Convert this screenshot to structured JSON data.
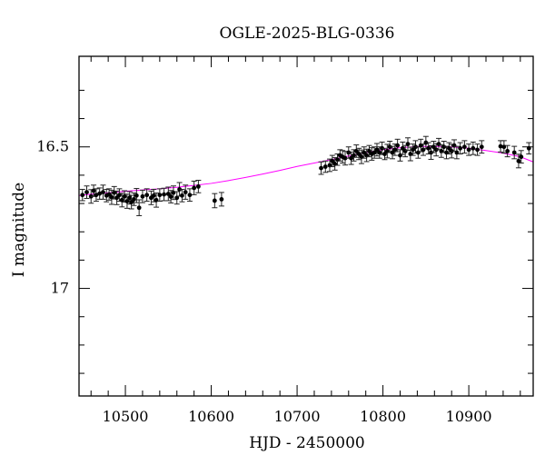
{
  "chart_data": {
    "type": "scatter",
    "title": "OGLE-2025-BLG-0336",
    "xlabel": "HJD - 2450000",
    "ylabel": "I magnitude",
    "xlim": [
      10446,
      10975
    ],
    "ylim": [
      17.38,
      16.18
    ],
    "y_inverted": true,
    "x_ticks": [
      10500,
      10600,
      10700,
      10800,
      10900
    ],
    "y_ticks": [
      16.5,
      17
    ],
    "y_tick_labels": [
      "16.5",
      "17"
    ],
    "grid": false,
    "colors": {
      "points": "#000000",
      "model": "#ff00ff",
      "axes": "#000000"
    },
    "series": [
      {
        "kind": "points-with-errorbars",
        "points": [
          [
            10450,
            16.67,
            0.02
          ],
          [
            10455,
            16.66,
            0.022
          ],
          [
            10460,
            16.675,
            0.024
          ],
          [
            10463,
            16.655,
            0.02
          ],
          [
            10466,
            16.67,
            0.022
          ],
          [
            10470,
            16.665,
            0.02
          ],
          [
            10474,
            16.66,
            0.025
          ],
          [
            10478,
            16.672,
            0.022
          ],
          [
            10481,
            16.668,
            0.02
          ],
          [
            10484,
            16.678,
            0.025
          ],
          [
            10487,
            16.662,
            0.022
          ],
          [
            10490,
            16.68,
            0.024
          ],
          [
            10493,
            16.67,
            0.022
          ],
          [
            10496,
            16.688,
            0.024
          ],
          [
            10499,
            16.675,
            0.02
          ],
          [
            10502,
            16.692,
            0.025
          ],
          [
            10505,
            16.68,
            0.022
          ],
          [
            10507,
            16.695,
            0.024
          ],
          [
            10510,
            16.685,
            0.022
          ],
          [
            10513,
            16.672,
            0.025
          ],
          [
            10516,
            16.715,
            0.028
          ],
          [
            10520,
            16.675,
            0.022
          ],
          [
            10525,
            16.67,
            0.022
          ],
          [
            10530,
            16.68,
            0.024
          ],
          [
            10533,
            16.672,
            0.022
          ],
          [
            10536,
            16.688,
            0.025
          ],
          [
            10540,
            16.67,
            0.022
          ],
          [
            10545,
            16.668,
            0.022
          ],
          [
            10550,
            16.666,
            0.024
          ],
          [
            10553,
            16.676,
            0.022
          ],
          [
            10556,
            16.662,
            0.024
          ],
          [
            10560,
            16.68,
            0.022
          ],
          [
            10563,
            16.65,
            0.024
          ],
          [
            10566,
            16.672,
            0.022
          ],
          [
            10570,
            16.66,
            0.025
          ],
          [
            10575,
            16.67,
            0.022
          ],
          [
            10580,
            16.645,
            0.024
          ],
          [
            10585,
            16.64,
            0.022
          ],
          [
            10604,
            16.69,
            0.025
          ],
          [
            10612,
            16.685,
            0.024
          ],
          [
            10728,
            16.575,
            0.022
          ],
          [
            10733,
            16.57,
            0.02
          ],
          [
            10738,
            16.565,
            0.022
          ],
          [
            10741,
            16.55,
            0.02
          ],
          [
            10744,
            16.56,
            0.022
          ],
          [
            10747,
            16.545,
            0.02
          ],
          [
            10750,
            16.53,
            0.02
          ],
          [
            10753,
            16.535,
            0.022
          ],
          [
            10756,
            16.54,
            0.024
          ],
          [
            10760,
            16.52,
            0.02
          ],
          [
            10763,
            16.54,
            0.022
          ],
          [
            10766,
            16.53,
            0.02
          ],
          [
            10769,
            16.515,
            0.022
          ],
          [
            10772,
            16.525,
            0.02
          ],
          [
            10775,
            16.535,
            0.024
          ],
          [
            10778,
            16.52,
            0.02
          ],
          [
            10781,
            16.53,
            0.022
          ],
          [
            10784,
            16.515,
            0.02
          ],
          [
            10787,
            16.525,
            0.022
          ],
          [
            10790,
            16.52,
            0.02
          ],
          [
            10793,
            16.51,
            0.022
          ],
          [
            10796,
            16.52,
            0.02
          ],
          [
            10799,
            16.505,
            0.022
          ],
          [
            10802,
            16.525,
            0.02
          ],
          [
            10805,
            16.515,
            0.024
          ],
          [
            10808,
            16.5,
            0.02
          ],
          [
            10811,
            16.52,
            0.022
          ],
          [
            10814,
            16.51,
            0.02
          ],
          [
            10817,
            16.495,
            0.022
          ],
          [
            10820,
            16.53,
            0.02
          ],
          [
            10823,
            16.505,
            0.022
          ],
          [
            10826,
            16.515,
            0.02
          ],
          [
            10829,
            16.49,
            0.022
          ],
          [
            10832,
            16.525,
            0.024
          ],
          [
            10835,
            16.51,
            0.02
          ],
          [
            10838,
            16.5,
            0.022
          ],
          [
            10841,
            16.52,
            0.02
          ],
          [
            10844,
            16.495,
            0.022
          ],
          [
            10847,
            16.51,
            0.02
          ],
          [
            10850,
            16.485,
            0.022
          ],
          [
            10853,
            16.505,
            0.02
          ],
          [
            10856,
            16.52,
            0.024
          ],
          [
            10859,
            16.5,
            0.02
          ],
          [
            10862,
            16.51,
            0.022
          ],
          [
            10865,
            16.49,
            0.02
          ],
          [
            10868,
            16.515,
            0.022
          ],
          [
            10871,
            16.5,
            0.02
          ],
          [
            10874,
            16.52,
            0.022
          ],
          [
            10877,
            16.505,
            0.02
          ],
          [
            10880,
            16.515,
            0.024
          ],
          [
            10883,
            16.495,
            0.02
          ],
          [
            10886,
            16.52,
            0.022
          ],
          [
            10890,
            16.505,
            0.02
          ],
          [
            10895,
            16.5,
            0.022
          ],
          [
            10900,
            16.51,
            0.02
          ],
          [
            10905,
            16.505,
            0.022
          ],
          [
            10910,
            16.51,
            0.02
          ],
          [
            10915,
            16.5,
            0.022
          ],
          [
            10937,
            16.498,
            0.02
          ],
          [
            10941,
            16.5,
            0.022
          ],
          [
            10945,
            16.515,
            0.02
          ],
          [
            10953,
            16.52,
            0.022
          ],
          [
            10958,
            16.55,
            0.024
          ],
          [
            10961,
            16.535,
            0.022
          ],
          [
            10970,
            16.505,
            0.02
          ]
        ]
      },
      {
        "kind": "model-curve",
        "x": [
          10440,
          10460,
          10480,
          10500,
          10520,
          10540,
          10560,
          10580,
          10600,
          10620,
          10640,
          10660,
          10680,
          10700,
          10720,
          10740,
          10760,
          10780,
          10800,
          10820,
          10840,
          10860,
          10880,
          10900,
          10920,
          10940,
          10960,
          10980
        ],
        "y": [
          16.672,
          16.667,
          16.662,
          16.657,
          16.652,
          16.648,
          16.643,
          16.636,
          16.629,
          16.619,
          16.608,
          16.596,
          16.583,
          16.569,
          16.557,
          16.545,
          16.532,
          16.52,
          16.51,
          16.503,
          16.499,
          16.498,
          16.5,
          16.505,
          16.513,
          16.522,
          16.535,
          16.553
        ]
      }
    ]
  }
}
